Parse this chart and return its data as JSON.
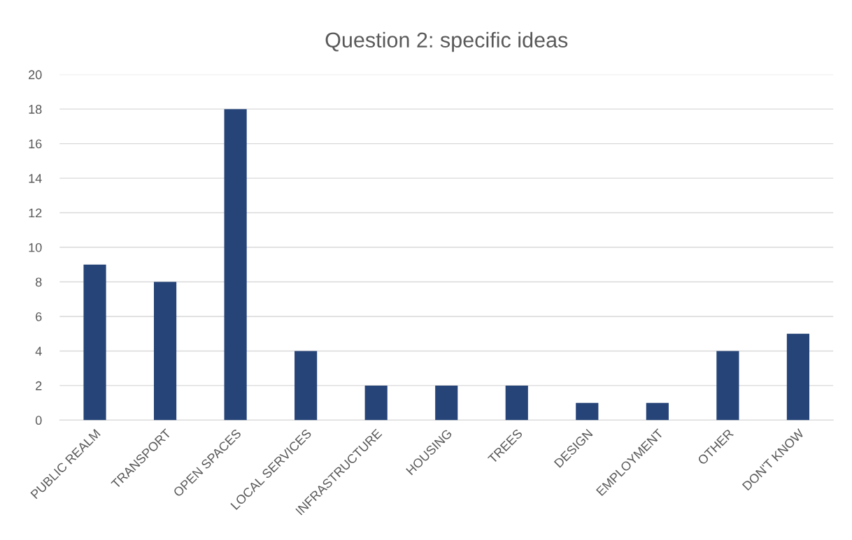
{
  "chart_data": {
    "type": "bar",
    "title": "Question 2: specific ideas",
    "categories": [
      "PUBLIC REALM",
      "TRANSPORT",
      "OPEN SPACES",
      "LOCAL SERVICES",
      "INFRASTRUCTURE",
      "HOUSING",
      "TREES",
      "DESIGN",
      "EMPLOYMENT",
      "OTHER",
      "DON'T KNOW"
    ],
    "values": [
      9,
      8,
      18,
      4,
      2,
      2,
      2,
      1,
      1,
      4,
      5
    ],
    "color": "#264478",
    "ylim": [
      0,
      20
    ],
    "yticks": [
      0,
      2,
      4,
      6,
      8,
      10,
      12,
      14,
      16,
      18,
      20
    ],
    "grid": "y"
  }
}
